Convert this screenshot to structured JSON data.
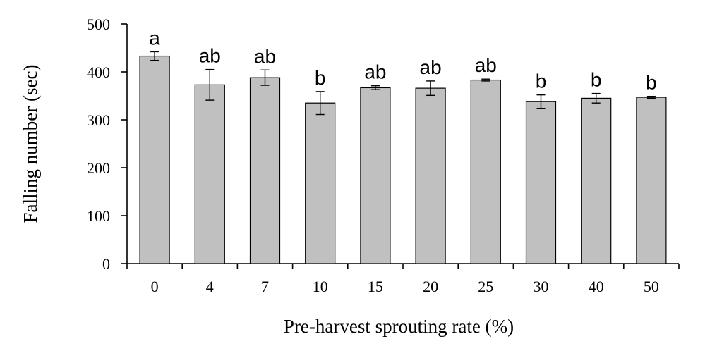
{
  "chart_data": {
    "type": "bar",
    "title": "",
    "xlabel": "Pre-harvest sprouting rate (%)",
    "ylabel": "Falling number (sec)",
    "ylim": [
      0,
      500
    ],
    "yticks": [
      0,
      100,
      200,
      300,
      400,
      500
    ],
    "categories": [
      "0",
      "4",
      "7",
      "10",
      "15",
      "20",
      "25",
      "30",
      "40",
      "50"
    ],
    "values": [
      433,
      373,
      388,
      335,
      367,
      366,
      383,
      338,
      345,
      347
    ],
    "errors": [
      9,
      32,
      16,
      24,
      4,
      15,
      2,
      14,
      10,
      2
    ],
    "significance": [
      "a",
      "ab",
      "ab",
      "b",
      "ab",
      "ab",
      "ab",
      "b",
      "b",
      "b"
    ],
    "grid": false,
    "legend": "none",
    "colors": {
      "bar_fill": "#c0c0c0",
      "bar_stroke": "#000000"
    }
  }
}
